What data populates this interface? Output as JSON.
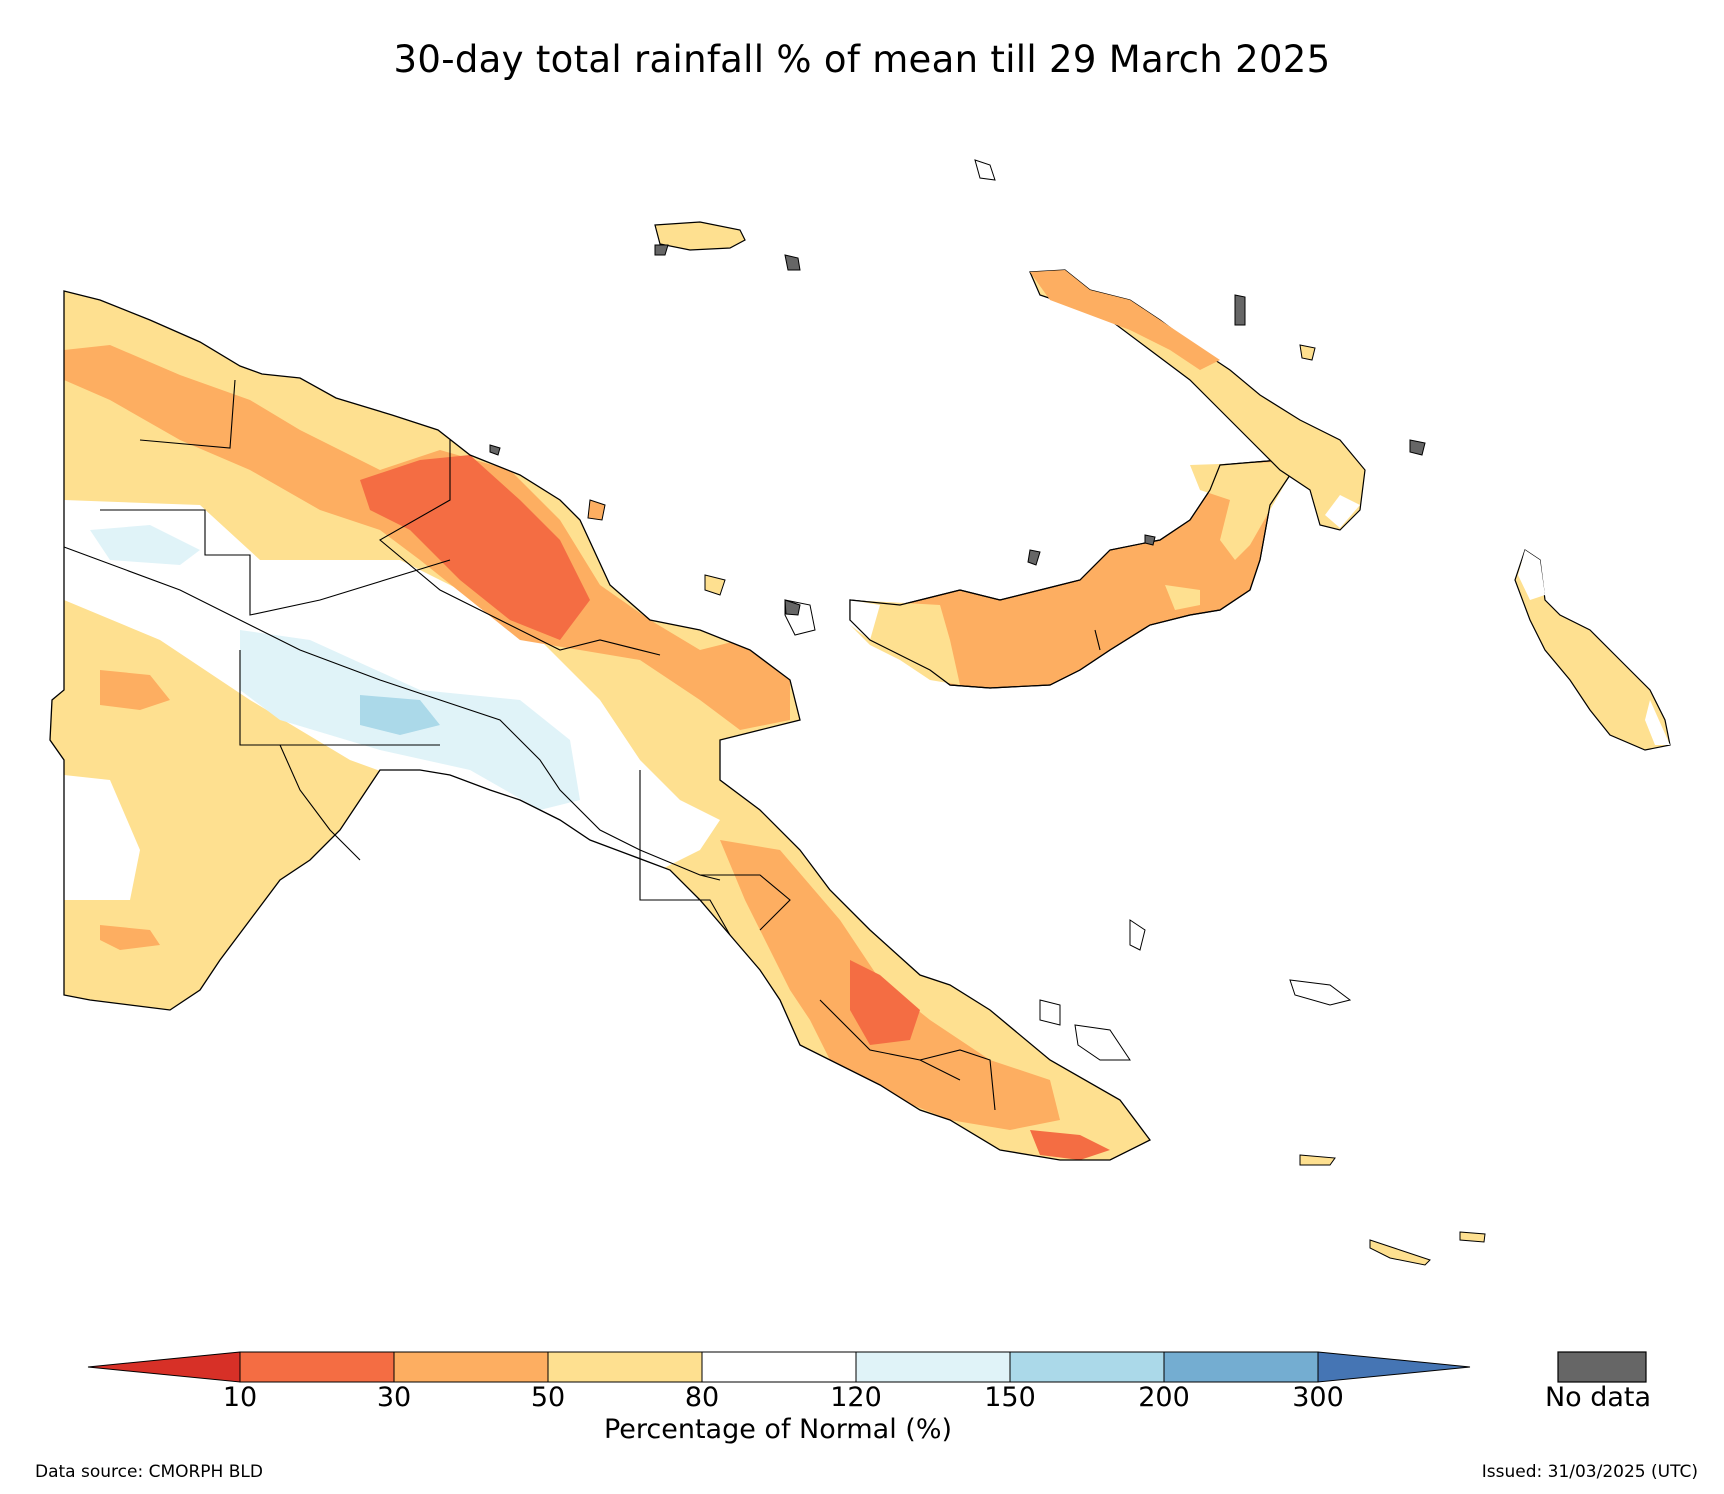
{
  "title": "30-day total rainfall % of mean till 29 March 2025",
  "colorbar": {
    "title": "Percentage of Normal (%)",
    "ticks": [
      "10",
      "30",
      "50",
      "80",
      "120",
      "150",
      "200",
      "300"
    ],
    "bins": [
      {
        "range": "<10",
        "color": "#d73027"
      },
      {
        "range": "10-30",
        "color": "#f46d43"
      },
      {
        "range": "30-50",
        "color": "#fdae61"
      },
      {
        "range": "50-80",
        "color": "#fee090"
      },
      {
        "range": "80-120",
        "color": "#ffffff"
      },
      {
        "range": "120-150",
        "color": "#e0f3f8"
      },
      {
        "range": "150-200",
        "color": "#abd9e9"
      },
      {
        "range": "200-300",
        "color": "#74add1"
      },
      {
        "range": ">300",
        "color": "#4575b4"
      }
    ],
    "no_data_label": "No data",
    "no_data_color": "#666666"
  },
  "footer": {
    "source": "Data source: CMORPH BLD",
    "issued": "Issued: 31/03/2025 (UTC)"
  },
  "map": {
    "region": "Papua New Guinea",
    "dominant_categories": [
      "30-50",
      "50-80",
      "80-120"
    ]
  }
}
